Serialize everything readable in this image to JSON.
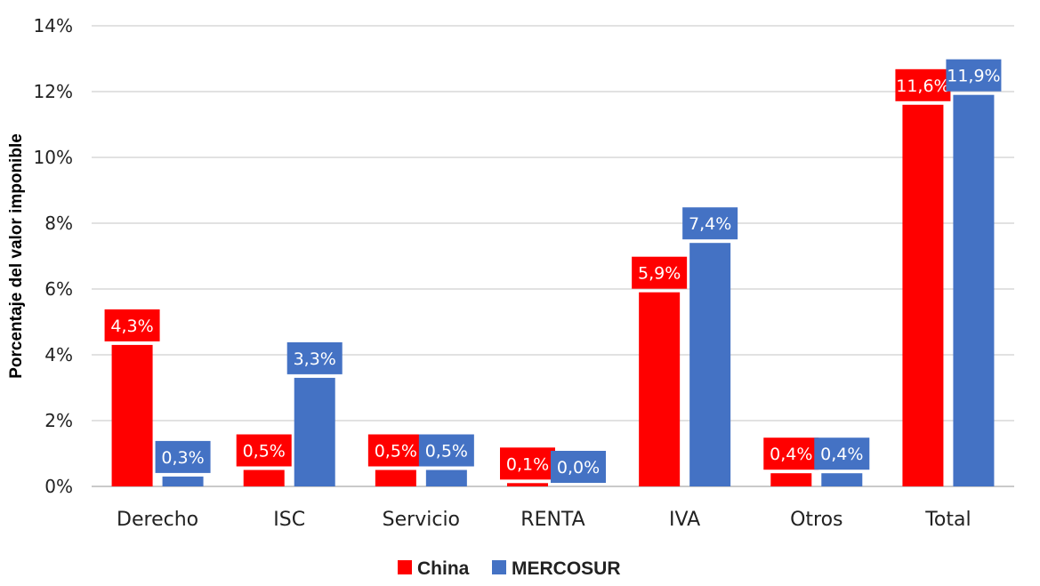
{
  "chart_data": {
    "type": "bar",
    "categories": [
      "Derecho",
      "ISC",
      "Servicio",
      "RENTA",
      "IVA",
      "Otros",
      "Total"
    ],
    "series": [
      {
        "name": "China",
        "color": "#ff0000",
        "values": [
          4.3,
          0.5,
          0.5,
          0.1,
          5.9,
          0.4,
          11.6
        ],
        "labels": [
          "4,3%",
          "0,5%",
          "0,5%",
          "0,1%",
          "5,9%",
          "0,4%",
          "11,6%"
        ]
      },
      {
        "name": "MERCOSUR",
        "color": "#4472c4",
        "values": [
          0.3,
          3.3,
          0.5,
          0.0,
          7.4,
          0.4,
          11.9
        ],
        "labels": [
          "0,3%",
          "3,3%",
          "0,5%",
          "0,0%",
          "7,4%",
          "0,4%",
          "11,9%"
        ]
      }
    ],
    "ylabel": "Porcentaje del valor imponible",
    "ylim": [
      0,
      14
    ],
    "yticks": [
      0,
      2,
      4,
      6,
      8,
      10,
      12,
      14
    ],
    "ytick_labels": [
      "0%",
      "2%",
      "4%",
      "6%",
      "8%",
      "10%",
      "12%",
      "14%"
    ],
    "grid": true,
    "legend_position": "bottom"
  }
}
